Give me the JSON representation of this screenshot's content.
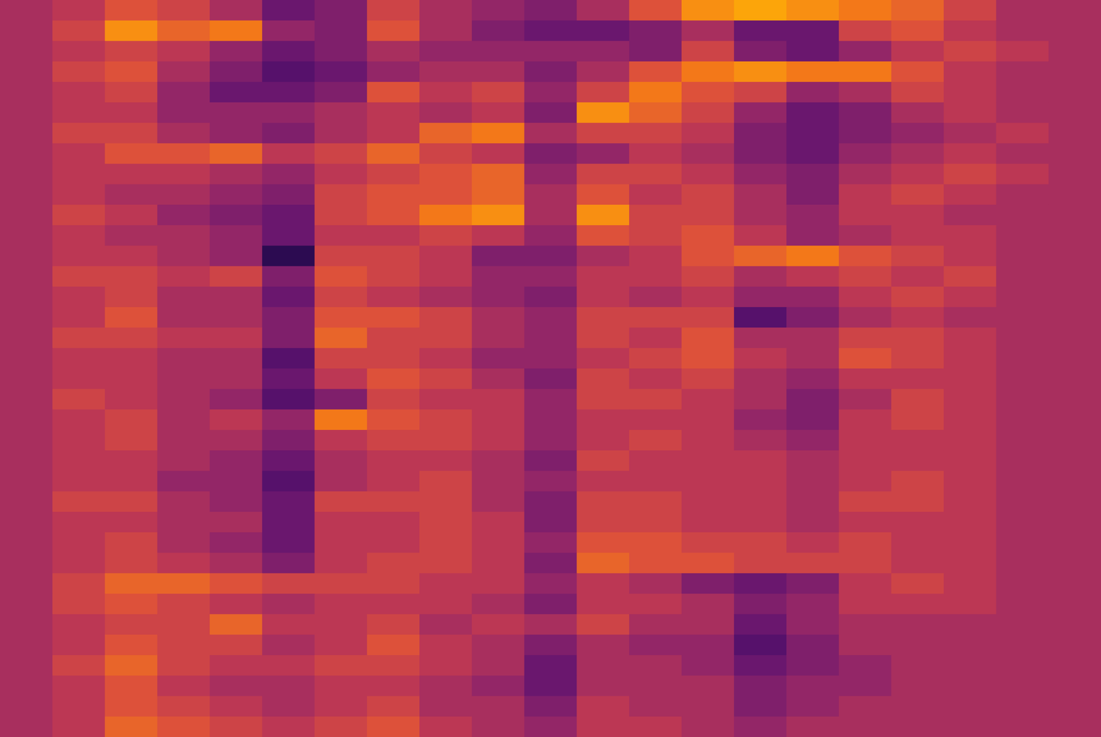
{
  "chart_data": {
    "type": "heatmap",
    "tick_labels": false,
    "zlim": [
      0,
      1
    ],
    "cells": [
      [
        0.45,
        0.5,
        0.6,
        0.55,
        0.45,
        0.3,
        0.35,
        0.55,
        0.45,
        0.4,
        0.35,
        0.45,
        0.6,
        0.75,
        0.8,
        0.75,
        0.7,
        0.65,
        0.55,
        0.45,
        0.45
      ],
      [
        0.45,
        0.55,
        0.75,
        0.65,
        0.7,
        0.4,
        0.35,
        0.6,
        0.45,
        0.35,
        0.3,
        0.3,
        0.35,
        0.45,
        0.3,
        0.3,
        0.55,
        0.6,
        0.5,
        0.45,
        0.45
      ],
      [
        0.45,
        0.5,
        0.55,
        0.5,
        0.4,
        0.3,
        0.35,
        0.45,
        0.4,
        0.4,
        0.4,
        0.4,
        0.35,
        0.55,
        0.35,
        0.3,
        0.4,
        0.5,
        0.55,
        0.5,
        0.45
      ],
      [
        0.45,
        0.55,
        0.6,
        0.45,
        0.35,
        0.25,
        0.3,
        0.4,
        0.45,
        0.45,
        0.35,
        0.45,
        0.6,
        0.7,
        0.75,
        0.7,
        0.7,
        0.6,
        0.5,
        0.45,
        0.45
      ],
      [
        0.45,
        0.5,
        0.55,
        0.4,
        0.3,
        0.3,
        0.35,
        0.6,
        0.5,
        0.55,
        0.4,
        0.55,
        0.7,
        0.6,
        0.55,
        0.4,
        0.45,
        0.55,
        0.5,
        0.45,
        0.45
      ],
      [
        0.45,
        0.5,
        0.5,
        0.4,
        0.4,
        0.4,
        0.45,
        0.5,
        0.45,
        0.5,
        0.35,
        0.75,
        0.65,
        0.55,
        0.4,
        0.3,
        0.35,
        0.45,
        0.5,
        0.45,
        0.45
      ],
      [
        0.45,
        0.55,
        0.55,
        0.45,
        0.4,
        0.35,
        0.45,
        0.5,
        0.65,
        0.7,
        0.45,
        0.55,
        0.55,
        0.5,
        0.35,
        0.3,
        0.35,
        0.4,
        0.45,
        0.5,
        0.45
      ],
      [
        0.45,
        0.5,
        0.6,
        0.6,
        0.65,
        0.5,
        0.55,
        0.65,
        0.55,
        0.5,
        0.35,
        0.4,
        0.5,
        0.45,
        0.35,
        0.3,
        0.4,
        0.45,
        0.5,
        0.45,
        0.45
      ],
      [
        0.45,
        0.5,
        0.5,
        0.5,
        0.45,
        0.4,
        0.5,
        0.55,
        0.6,
        0.65,
        0.4,
        0.55,
        0.55,
        0.5,
        0.4,
        0.35,
        0.45,
        0.5,
        0.55,
        0.5,
        0.45
      ],
      [
        0.45,
        0.5,
        0.45,
        0.45,
        0.4,
        0.35,
        0.55,
        0.6,
        0.6,
        0.65,
        0.45,
        0.6,
        0.5,
        0.55,
        0.45,
        0.35,
        0.5,
        0.55,
        0.5,
        0.45,
        0.45
      ],
      [
        0.45,
        0.55,
        0.5,
        0.4,
        0.35,
        0.3,
        0.55,
        0.6,
        0.7,
        0.75,
        0.45,
        0.75,
        0.55,
        0.55,
        0.45,
        0.4,
        0.5,
        0.5,
        0.45,
        0.45,
        0.45
      ],
      [
        0.45,
        0.5,
        0.45,
        0.45,
        0.4,
        0.3,
        0.5,
        0.5,
        0.55,
        0.5,
        0.4,
        0.6,
        0.55,
        0.6,
        0.5,
        0.4,
        0.45,
        0.5,
        0.5,
        0.45,
        0.45
      ],
      [
        0.45,
        0.5,
        0.5,
        0.45,
        0.4,
        0.15,
        0.55,
        0.55,
        0.5,
        0.35,
        0.35,
        0.45,
        0.5,
        0.6,
        0.65,
        0.7,
        0.6,
        0.55,
        0.5,
        0.45,
        0.45
      ],
      [
        0.45,
        0.55,
        0.55,
        0.5,
        0.55,
        0.35,
        0.6,
        0.55,
        0.5,
        0.4,
        0.4,
        0.5,
        0.5,
        0.55,
        0.45,
        0.5,
        0.55,
        0.5,
        0.55,
        0.45,
        0.45
      ],
      [
        0.45,
        0.5,
        0.55,
        0.45,
        0.45,
        0.3,
        0.55,
        0.5,
        0.45,
        0.4,
        0.35,
        0.5,
        0.45,
        0.5,
        0.4,
        0.4,
        0.5,
        0.55,
        0.5,
        0.45,
        0.45
      ],
      [
        0.45,
        0.5,
        0.6,
        0.45,
        0.45,
        0.35,
        0.6,
        0.6,
        0.55,
        0.45,
        0.4,
        0.55,
        0.55,
        0.55,
        0.25,
        0.35,
        0.45,
        0.5,
        0.45,
        0.45,
        0.45
      ],
      [
        0.45,
        0.55,
        0.55,
        0.5,
        0.5,
        0.35,
        0.65,
        0.55,
        0.55,
        0.45,
        0.4,
        0.55,
        0.5,
        0.6,
        0.45,
        0.45,
        0.55,
        0.55,
        0.5,
        0.45,
        0.45
      ],
      [
        0.45,
        0.5,
        0.5,
        0.45,
        0.45,
        0.25,
        0.55,
        0.55,
        0.5,
        0.4,
        0.4,
        0.5,
        0.55,
        0.6,
        0.5,
        0.45,
        0.6,
        0.55,
        0.5,
        0.45,
        0.45
      ],
      [
        0.45,
        0.5,
        0.5,
        0.45,
        0.45,
        0.3,
        0.5,
        0.6,
        0.55,
        0.45,
        0.35,
        0.55,
        0.5,
        0.55,
        0.45,
        0.4,
        0.5,
        0.5,
        0.5,
        0.45,
        0.45
      ],
      [
        0.45,
        0.55,
        0.5,
        0.45,
        0.4,
        0.25,
        0.35,
        0.55,
        0.5,
        0.5,
        0.4,
        0.55,
        0.55,
        0.5,
        0.45,
        0.35,
        0.45,
        0.55,
        0.5,
        0.45,
        0.45
      ],
      [
        0.45,
        0.5,
        0.55,
        0.45,
        0.5,
        0.4,
        0.7,
        0.6,
        0.55,
        0.5,
        0.4,
        0.5,
        0.5,
        0.5,
        0.4,
        0.35,
        0.5,
        0.55,
        0.5,
        0.45,
        0.45
      ],
      [
        0.45,
        0.5,
        0.55,
        0.45,
        0.45,
        0.35,
        0.5,
        0.55,
        0.55,
        0.5,
        0.4,
        0.5,
        0.55,
        0.5,
        0.45,
        0.4,
        0.5,
        0.5,
        0.5,
        0.45,
        0.45
      ],
      [
        0.45,
        0.5,
        0.5,
        0.45,
        0.4,
        0.3,
        0.45,
        0.5,
        0.5,
        0.45,
        0.35,
        0.55,
        0.5,
        0.5,
        0.5,
        0.45,
        0.5,
        0.5,
        0.5,
        0.45,
        0.45
      ],
      [
        0.45,
        0.5,
        0.5,
        0.4,
        0.4,
        0.25,
        0.45,
        0.5,
        0.55,
        0.45,
        0.4,
        0.5,
        0.5,
        0.5,
        0.5,
        0.45,
        0.5,
        0.55,
        0.5,
        0.45,
        0.45
      ],
      [
        0.45,
        0.55,
        0.55,
        0.45,
        0.4,
        0.3,
        0.55,
        0.55,
        0.55,
        0.45,
        0.35,
        0.55,
        0.55,
        0.5,
        0.5,
        0.45,
        0.55,
        0.55,
        0.5,
        0.45,
        0.45
      ],
      [
        0.45,
        0.5,
        0.5,
        0.45,
        0.45,
        0.3,
        0.5,
        0.5,
        0.55,
        0.5,
        0.35,
        0.55,
        0.55,
        0.5,
        0.5,
        0.45,
        0.5,
        0.5,
        0.5,
        0.45,
        0.45
      ],
      [
        0.45,
        0.5,
        0.55,
        0.45,
        0.4,
        0.3,
        0.5,
        0.5,
        0.55,
        0.5,
        0.4,
        0.6,
        0.6,
        0.55,
        0.55,
        0.5,
        0.55,
        0.5,
        0.5,
        0.45,
        0.45
      ],
      [
        0.45,
        0.5,
        0.55,
        0.5,
        0.45,
        0.35,
        0.5,
        0.55,
        0.55,
        0.5,
        0.35,
        0.65,
        0.6,
        0.6,
        0.55,
        0.55,
        0.55,
        0.5,
        0.5,
        0.45,
        0.45
      ],
      [
        0.45,
        0.55,
        0.65,
        0.65,
        0.6,
        0.55,
        0.55,
        0.55,
        0.5,
        0.5,
        0.4,
        0.5,
        0.45,
        0.35,
        0.3,
        0.35,
        0.5,
        0.55,
        0.5,
        0.45,
        0.45
      ],
      [
        0.45,
        0.55,
        0.6,
        0.55,
        0.5,
        0.45,
        0.5,
        0.5,
        0.5,
        0.45,
        0.35,
        0.5,
        0.5,
        0.45,
        0.35,
        0.4,
        0.5,
        0.5,
        0.5,
        0.45,
        0.45
      ],
      [
        0.45,
        0.5,
        0.55,
        0.55,
        0.65,
        0.5,
        0.5,
        0.55,
        0.45,
        0.5,
        0.45,
        0.55,
        0.45,
        0.45,
        0.3,
        0.4,
        0.45,
        0.45,
        0.45,
        0.45,
        0.45
      ],
      [
        0.45,
        0.5,
        0.6,
        0.55,
        0.55,
        0.45,
        0.5,
        0.6,
        0.5,
        0.45,
        0.35,
        0.45,
        0.4,
        0.4,
        0.25,
        0.35,
        0.45,
        0.45,
        0.45,
        0.45,
        0.45
      ],
      [
        0.45,
        0.55,
        0.65,
        0.55,
        0.5,
        0.5,
        0.55,
        0.55,
        0.5,
        0.45,
        0.3,
        0.45,
        0.45,
        0.4,
        0.3,
        0.35,
        0.4,
        0.45,
        0.45,
        0.45,
        0.45
      ],
      [
        0.45,
        0.5,
        0.6,
        0.5,
        0.45,
        0.45,
        0.5,
        0.5,
        0.45,
        0.4,
        0.3,
        0.45,
        0.45,
        0.45,
        0.35,
        0.4,
        0.4,
        0.45,
        0.45,
        0.45,
        0.45
      ],
      [
        0.45,
        0.5,
        0.6,
        0.55,
        0.5,
        0.45,
        0.5,
        0.55,
        0.45,
        0.45,
        0.35,
        0.5,
        0.45,
        0.45,
        0.35,
        0.4,
        0.45,
        0.45,
        0.45,
        0.45,
        0.45
      ],
      [
        0.45,
        0.5,
        0.65,
        0.6,
        0.55,
        0.5,
        0.55,
        0.6,
        0.5,
        0.45,
        0.4,
        0.5,
        0.5,
        0.45,
        0.4,
        0.45,
        0.45,
        0.45,
        0.45,
        0.45,
        0.45
      ]
    ]
  }
}
